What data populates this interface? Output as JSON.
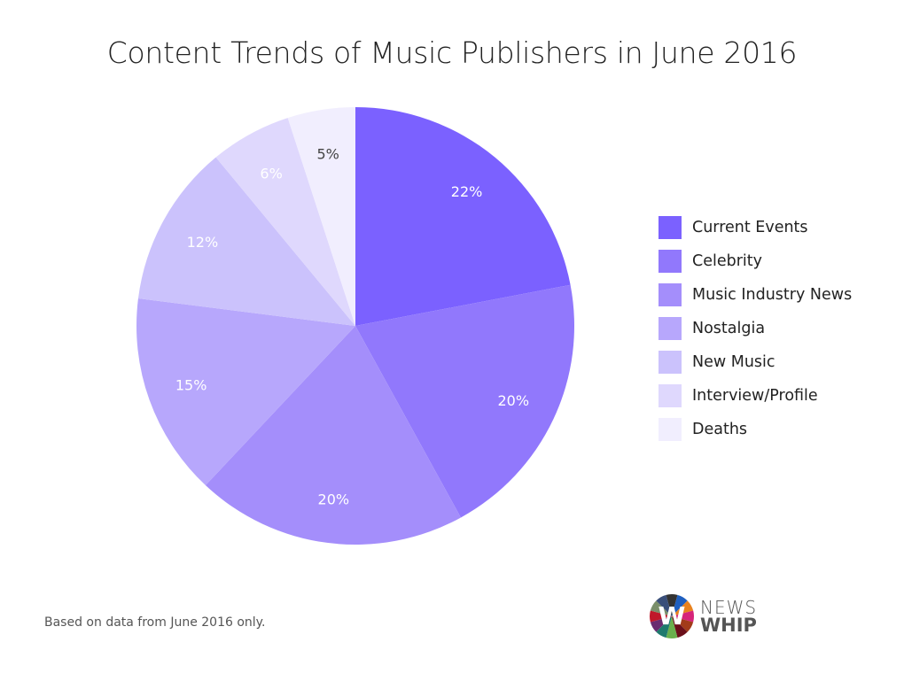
{
  "chart_data": {
    "type": "pie",
    "title": "Content Trends of Music Publishers in June 2016",
    "categories": [
      "Current Events",
      "Celebrity",
      "Music Industry News",
      "Nostalgia",
      "New Music",
      "Interview/Profile",
      "Deaths"
    ],
    "values": [
      22,
      20,
      20,
      15,
      12,
      6,
      5
    ],
    "labels": [
      "22%",
      "20%",
      "20%",
      "15%",
      "12%",
      "6%",
      "5%"
    ],
    "colors": [
      "#7B61FF",
      "#9178FC",
      "#A48EFB",
      "#B7A7FC",
      "#CBC2FC",
      "#DFD8FD",
      "#F1EEFE"
    ],
    "label_colors": [
      "#ffffff",
      "#ffffff",
      "#ffffff",
      "#ffffff",
      "#ffffff",
      "#ffffff",
      "#444444"
    ],
    "legend_position": "right",
    "start": "top, clockwise"
  },
  "footnote": "Based on data from June 2016 only.",
  "logo": {
    "line1": "NEWS",
    "line2": "WHIP"
  }
}
